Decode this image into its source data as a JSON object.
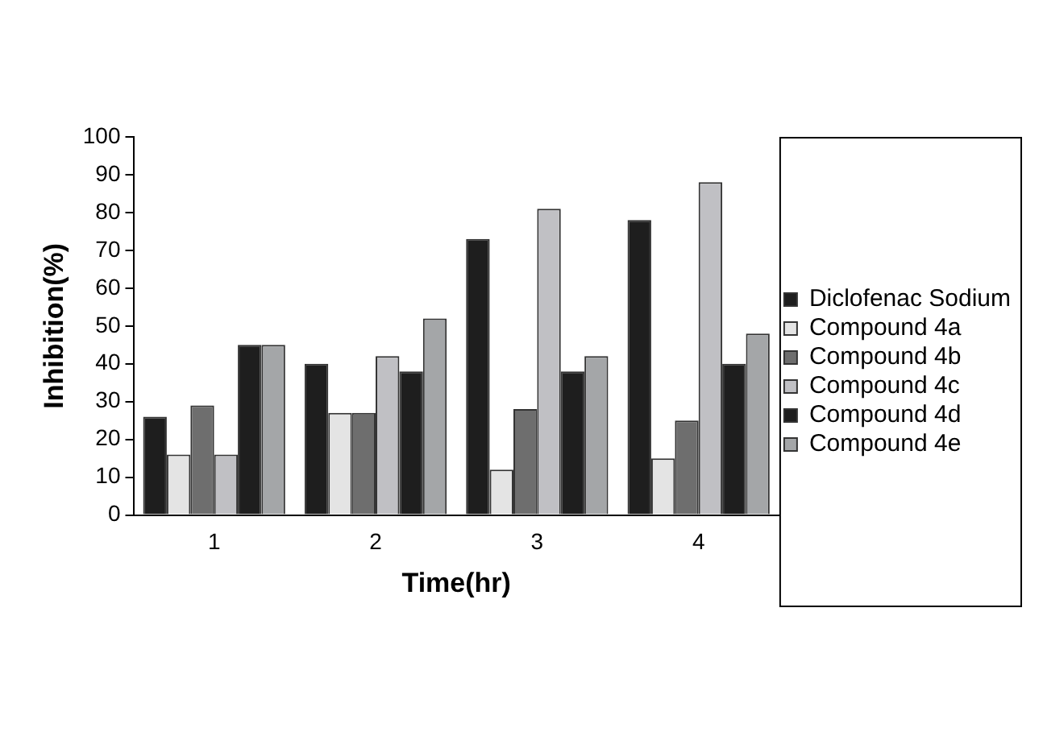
{
  "chart_data": {
    "type": "bar",
    "xlabel": "Time(hr)",
    "ylabel": "Inhibition(%)",
    "categories": [
      "1",
      "2",
      "3",
      "4"
    ],
    "series": [
      {
        "name": "Diclofenac Sodium",
        "color": "#1e1e1e",
        "values": [
          26,
          40,
          73,
          78
        ]
      },
      {
        "name": "Compound 4a",
        "color": "#e4e4e4",
        "values": [
          16,
          27,
          12,
          15
        ]
      },
      {
        "name": "Compound 4b",
        "color": "#6e6e6e",
        "values": [
          29,
          27,
          28,
          25
        ]
      },
      {
        "name": "Compound 4c",
        "color": "#c0c0c4",
        "values": [
          16,
          42,
          81,
          88
        ]
      },
      {
        "name": "Compound 4d",
        "color": "#1e1e1e",
        "values": [
          45,
          38,
          38,
          40
        ]
      },
      {
        "name": "Compound 4e",
        "color": "#a4a6a8",
        "values": [
          45,
          52,
          42,
          48
        ]
      }
    ],
    "ylim": [
      0,
      100
    ],
    "yticks": [
      0,
      10,
      20,
      30,
      40,
      50,
      60,
      70,
      80,
      90,
      100
    ],
    "grid": false,
    "legend": "right"
  }
}
